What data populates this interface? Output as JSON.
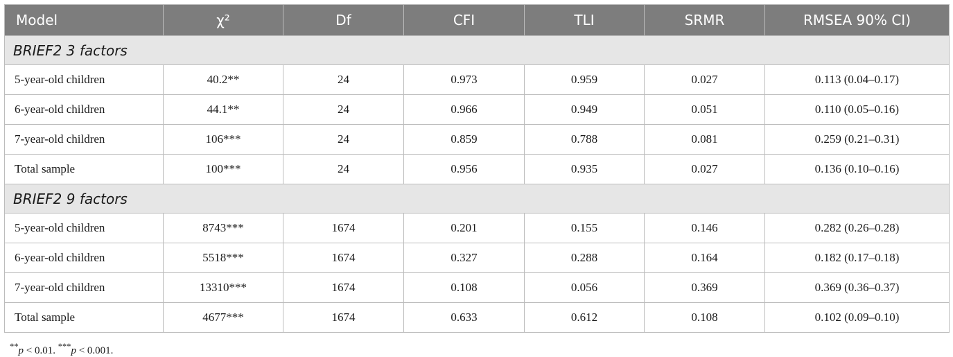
{
  "table": {
    "headers": [
      "Model",
      "χ²",
      "Df",
      "CFI",
      "TLI",
      "SRMR",
      "RMSEA 90% CI)"
    ],
    "sections": [
      {
        "title": "BRIEF2 3 factors",
        "rows": [
          [
            "5-year-old children",
            "40.2**",
            "24",
            "0.973",
            "0.959",
            "0.027",
            "0.113 (0.04–0.17)"
          ],
          [
            "6-year-old children",
            "44.1**",
            "24",
            "0.966",
            "0.949",
            "0.051",
            "0.110 (0.05–0.16)"
          ],
          [
            "7-year-old children",
            "106***",
            "24",
            "0.859",
            "0.788",
            "0.081",
            "0.259 (0.21–0.31)"
          ],
          [
            "Total sample",
            "100***",
            "24",
            "0.956",
            "0.935",
            "0.027",
            "0.136 (0.10–0.16)"
          ]
        ]
      },
      {
        "title": "BRIEF2 9 factors",
        "rows": [
          [
            "5-year-old children",
            "8743***",
            "1674",
            "0.201",
            "0.155",
            "0.146",
            "0.282 (0.26–0.28)"
          ],
          [
            "6-year-old children",
            "5518***",
            "1674",
            "0.327",
            "0.288",
            "0.164",
            "0.182 (0.17–0.18)"
          ],
          [
            "7-year-old children",
            "13310***",
            "1674",
            "0.108",
            "0.056",
            "0.369",
            "0.369 (0.36–0.37)"
          ],
          [
            "Total sample",
            "4677***",
            "1674",
            "0.633",
            "0.612",
            "0.108",
            "0.102 (0.09–0.10)"
          ]
        ]
      }
    ]
  },
  "footnote": {
    "mark1": "**",
    "var1": "p",
    "text1": " < 0.01. ",
    "mark2": "***",
    "var2": "p",
    "text2": " < 0.001."
  }
}
